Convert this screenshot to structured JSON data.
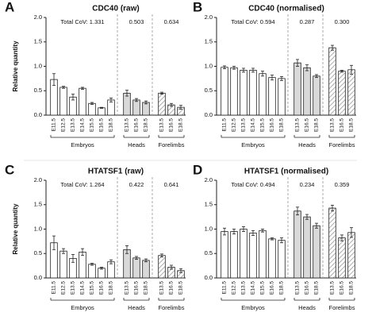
{
  "chart_data": [
    {
      "type": "bar",
      "panel": "A",
      "title": "CDC40 (raw)",
      "y_label": "Relative quantity",
      "ylim": [
        0,
        2
      ],
      "yticks": [
        {
          "value": 0,
          "label": "0.0"
        },
        0.5,
        {
          "value": 1,
          "label": "1.0"
        },
        1.5,
        {
          "value": 2,
          "label": "2.0"
        }
      ],
      "series": [
        {
          "name": "Embryos",
          "color": "#ffffff",
          "cov": "Total CoV: 1.331",
          "categories": [
            "E11.5",
            "E12.5",
            "E13.5",
            "E14.5",
            "E15.5",
            "E16.5",
            "E18.5"
          ],
          "values": [
            0.73,
            0.57,
            0.37,
            0.55,
            0.24,
            0.15,
            0.31
          ],
          "errors": [
            0.12,
            0.02,
            0.06,
            0.02,
            0.02,
            0.01,
            0.04
          ]
        },
        {
          "name": "Heads",
          "color": "#d9d9d9",
          "cov": "0.503",
          "categories": [
            "E13.5",
            "E16.5",
            "E18.5"
          ],
          "values": [
            0.45,
            0.31,
            0.26
          ],
          "errors": [
            0.06,
            0.03,
            0.03
          ]
        },
        {
          "name": "Forelimbs",
          "color": "#ffffff",
          "pattern": "hatch",
          "cov": "0.634",
          "categories": [
            "E13.5",
            "E16.5",
            "E18.5"
          ],
          "values": [
            0.45,
            0.21,
            0.16
          ],
          "errors": [
            0.02,
            0.03,
            0.04
          ]
        }
      ]
    },
    {
      "type": "bar",
      "panel": "B",
      "title": "CDC40 (normalised)",
      "ylim": [
        0,
        2
      ],
      "yticks": [
        {
          "value": 0,
          "label": "0.0"
        },
        0.5,
        {
          "value": 1,
          "label": "1.0"
        },
        1.5,
        {
          "value": 2,
          "label": "2.0"
        }
      ],
      "series": [
        {
          "name": "Embryos",
          "color": "#ffffff",
          "cov": "Total CoV: 0.594",
          "categories": [
            "E11.5",
            "E12.5",
            "E13.5",
            "E14.5",
            "E15.5",
            "E16.5",
            "E18.5"
          ],
          "values": [
            0.98,
            0.97,
            0.92,
            0.92,
            0.85,
            0.77,
            0.75
          ],
          "errors": [
            0.03,
            0.03,
            0.04,
            0.04,
            0.05,
            0.05,
            0.04
          ]
        },
        {
          "name": "Heads",
          "color": "#d9d9d9",
          "cov": "0.287",
          "categories": [
            "E13.5",
            "E16.5",
            "E18.5"
          ],
          "values": [
            1.07,
            0.97,
            0.8
          ],
          "errors": [
            0.07,
            0.06,
            0.03
          ]
        },
        {
          "name": "Forelimbs",
          "color": "#ffffff",
          "pattern": "hatch",
          "cov": "0.300",
          "categories": [
            "E13.5",
            "E16.5",
            "E18.5"
          ],
          "values": [
            1.38,
            0.9,
            0.93
          ],
          "errors": [
            0.05,
            0.02,
            0.09
          ]
        }
      ]
    },
    {
      "type": "bar",
      "panel": "C",
      "title": "HTATSF1 (raw)",
      "y_label": "Relative quantity",
      "ylim": [
        0,
        2
      ],
      "yticks": [
        {
          "value": 0,
          "label": "0.0"
        },
        0.5,
        {
          "value": 1,
          "label": "1.0"
        },
        1.5,
        {
          "value": 2,
          "label": "2.0"
        }
      ],
      "series": [
        {
          "name": "Embryos",
          "color": "#ffffff",
          "cov": "Total CoV: 1.264",
          "categories": [
            "E11.5",
            "E12.5",
            "E13.5",
            "E14.5",
            "E15.5",
            "E16.5",
            "E18.5"
          ],
          "values": [
            0.72,
            0.55,
            0.4,
            0.53,
            0.28,
            0.2,
            0.33
          ],
          "errors": [
            0.14,
            0.05,
            0.08,
            0.07,
            0.02,
            0.02,
            0.04
          ]
        },
        {
          "name": "Heads",
          "color": "#d9d9d9",
          "cov": "0.422",
          "categories": [
            "E13.5",
            "E16.5",
            "E18.5"
          ],
          "values": [
            0.58,
            0.41,
            0.36
          ],
          "errors": [
            0.08,
            0.03,
            0.03
          ]
        },
        {
          "name": "Forelimbs",
          "color": "#ffffff",
          "pattern": "hatch",
          "cov": "0.641",
          "categories": [
            "E13.5",
            "E16.5",
            "E18.5"
          ],
          "values": [
            0.46,
            0.22,
            0.15
          ],
          "errors": [
            0.03,
            0.04,
            0.04
          ]
        }
      ]
    },
    {
      "type": "bar",
      "panel": "D",
      "title": "HTATSF1 (normalised)",
      "ylim": [
        0,
        2
      ],
      "yticks": [
        {
          "value": 0,
          "label": "0.0"
        },
        0.5,
        {
          "value": 1,
          "label": "1.0"
        },
        1.5,
        {
          "value": 2,
          "label": "2.0"
        }
      ],
      "series": [
        {
          "name": "Embryos",
          "color": "#ffffff",
          "cov": "Total CoV: 0.494",
          "categories": [
            "E11.5",
            "E12.5",
            "E13.5",
            "E14.5",
            "E15.5",
            "E16.5",
            "E18.5"
          ],
          "values": [
            0.95,
            0.95,
            1.0,
            0.92,
            0.97,
            0.8,
            0.77
          ],
          "errors": [
            0.07,
            0.05,
            0.05,
            0.05,
            0.03,
            0.02,
            0.05
          ]
        },
        {
          "name": "Heads",
          "color": "#d9d9d9",
          "cov": "0.234",
          "categories": [
            "E13.5",
            "E16.5",
            "E18.5"
          ],
          "values": [
            1.37,
            1.25,
            1.07
          ],
          "errors": [
            0.08,
            0.05,
            0.05
          ]
        },
        {
          "name": "Forelimbs",
          "color": "#ffffff",
          "pattern": "hatch",
          "cov": "0.359",
          "categories": [
            "E13.5",
            "E16.5",
            "E18.5"
          ],
          "values": [
            1.43,
            0.82,
            0.93
          ],
          "errors": [
            0.06,
            0.06,
            0.1
          ]
        }
      ]
    }
  ]
}
